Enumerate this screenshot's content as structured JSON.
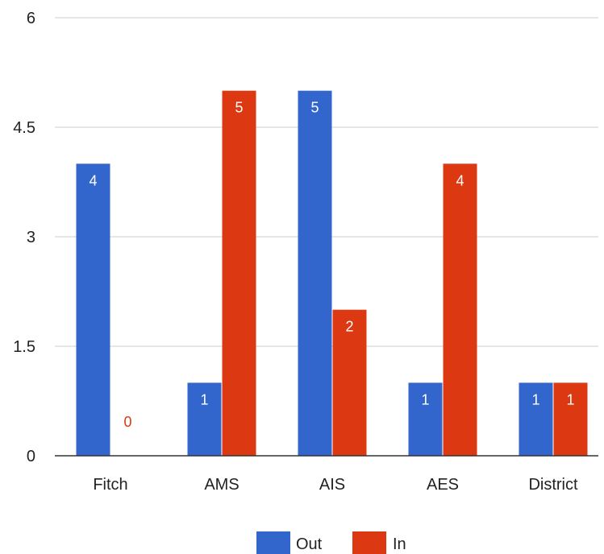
{
  "chart_data": {
    "type": "bar",
    "categories": [
      "Fitch",
      "AMS",
      "AIS",
      "AES",
      "District"
    ],
    "series": [
      {
        "name": "Out",
        "values": [
          4,
          1,
          5,
          1,
          1
        ],
        "color": "#3366cc"
      },
      {
        "name": "In",
        "values": [
          0,
          5,
          2,
          4,
          1
        ],
        "color": "#dc3912"
      }
    ],
    "ylim": [
      0,
      6
    ],
    "yticks": [
      0,
      1.5,
      3,
      4.5,
      6
    ],
    "ytick_labels": [
      "0",
      "1.5",
      "3",
      "4.5",
      "6"
    ],
    "grid": true,
    "legend": "bottom",
    "title": "",
    "xlabel": "",
    "ylabel": ""
  }
}
